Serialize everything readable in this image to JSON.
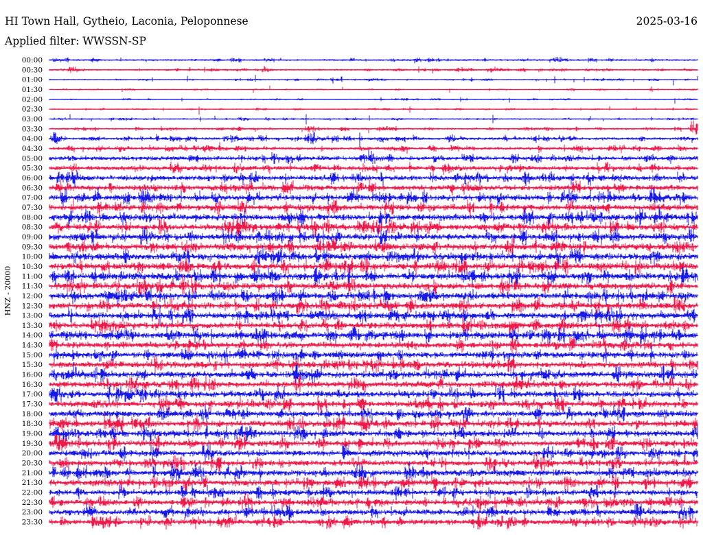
{
  "header": {
    "station": "HI Town Hall, Gytheio, Laconia, Peloponnese",
    "date": "2025-03-16",
    "filter": "Applied filter: WWSSN-SP"
  },
  "chart_data": {
    "type": "line",
    "subtype": "helicorder",
    "ylabel": "HNZ - 20000",
    "colors": [
      "#1a1ae6",
      "#ee1a4a"
    ],
    "trace_labels": [
      "00:00",
      "00:30",
      "01:00",
      "01:30",
      "02:00",
      "02:30",
      "03:00",
      "03:30",
      "04:00",
      "04:30",
      "05:00",
      "05:30",
      "06:00",
      "06:30",
      "07:00",
      "07:30",
      "08:00",
      "08:30",
      "09:00",
      "09:30",
      "10:00",
      "10:30",
      "11:00",
      "11:30",
      "12:00",
      "12:30",
      "13:00",
      "13:30",
      "14:00",
      "14:30",
      "15:00",
      "15:30",
      "16:00",
      "16:30",
      "17:00",
      "17:30",
      "18:00",
      "18:30",
      "19:00",
      "19:30",
      "20:00",
      "20:30",
      "21:00",
      "21:30",
      "22:00",
      "22:30",
      "23:00",
      "23:30"
    ],
    "noise_level": [
      0.9,
      0.8,
      0.5,
      0.4,
      0.4,
      0.45,
      0.6,
      0.9,
      1.4,
      1.6,
      2.2,
      2.4,
      2.7,
      2.9,
      3.1,
      3.2,
      3.4,
      3.4,
      3.5,
      3.6,
      3.7,
      3.6,
      3.6,
      3.5,
      3.5,
      3.5,
      3.4,
      3.4,
      3.4,
      3.3,
      3.4,
      3.5,
      3.4,
      3.4,
      3.4,
      3.3,
      3.3,
      3.4,
      3.3,
      3.3,
      3.3,
      3.2,
      3.3,
      3.2,
      3.1,
      3.1,
      3.0,
      2.9
    ],
    "events": [
      {
        "trace": 0,
        "minute": 23.5,
        "amp": 4
      },
      {
        "trace": 1,
        "minute": 1.0,
        "amp": 4
      },
      {
        "trace": 1,
        "minute": 19.0,
        "amp": 4
      },
      {
        "trace": 1,
        "minute": 20.5,
        "amp": 4
      },
      {
        "trace": 7,
        "minute": 12.0,
        "amp": 5
      },
      {
        "trace": 7,
        "minute": 29.8,
        "amp": 12
      },
      {
        "trace": 8,
        "minute": 0.2,
        "amp": 8
      },
      {
        "trace": 8,
        "minute": 12.0,
        "amp": 11
      },
      {
        "trace": 8,
        "minute": 18.5,
        "amp": 8
      },
      {
        "trace": 9,
        "minute": 7.2,
        "amp": 6
      },
      {
        "trace": 10,
        "minute": 15.0,
        "amp": 6
      },
      {
        "trace": 10,
        "minute": 14.5,
        "amp": 7
      },
      {
        "trace": 12,
        "minute": 14.3,
        "amp": 8
      },
      {
        "trace": 14,
        "minute": 4.3,
        "amp": 16
      },
      {
        "trace": 14,
        "minute": 14.0,
        "amp": 9
      },
      {
        "trace": 14,
        "minute": 27.9,
        "amp": 16
      },
      {
        "trace": 15,
        "minute": 27.9,
        "amp": 8
      },
      {
        "trace": 16,
        "minute": 10.8,
        "amp": 7
      },
      {
        "trace": 16,
        "minute": 23.3,
        "amp": 7
      },
      {
        "trace": 17,
        "minute": 12.7,
        "amp": 8
      },
      {
        "trace": 17,
        "minute": 17.8,
        "amp": 6
      },
      {
        "trace": 19,
        "minute": 19.5,
        "amp": 9
      },
      {
        "trace": 20,
        "minute": 10.6,
        "amp": 8
      },
      {
        "trace": 20,
        "minute": 15.7,
        "amp": 9
      },
      {
        "trace": 21,
        "minute": 6.2,
        "amp": 11
      },
      {
        "trace": 21,
        "minute": 12.9,
        "amp": 8
      },
      {
        "trace": 21,
        "minute": 25.4,
        "amp": 9
      },
      {
        "trace": 22,
        "minute": 10.3,
        "amp": 11
      },
      {
        "trace": 22,
        "minute": 12.3,
        "amp": 12
      },
      {
        "trace": 22,
        "minute": 13.2,
        "amp": 9
      },
      {
        "trace": 23,
        "minute": 6.2,
        "amp": 14
      },
      {
        "trace": 24,
        "minute": 7.5,
        "amp": 8
      },
      {
        "trace": 24,
        "minute": 13.1,
        "amp": 7
      },
      {
        "trace": 26,
        "minute": 16.4,
        "amp": 7
      },
      {
        "trace": 26,
        "minute": 24.7,
        "amp": 13
      },
      {
        "trace": 27,
        "minute": 2.1,
        "amp": 10
      },
      {
        "trace": 27,
        "minute": 2.8,
        "amp": 9
      },
      {
        "trace": 27,
        "minute": 13.3,
        "amp": 7
      },
      {
        "trace": 28,
        "minute": 5.7,
        "amp": 13
      },
      {
        "trace": 28,
        "minute": 9.5,
        "amp": 12
      },
      {
        "trace": 28,
        "minute": 9.9,
        "amp": 10
      },
      {
        "trace": 28,
        "minute": 10.9,
        "amp": 7
      },
      {
        "trace": 29,
        "minute": 9.8,
        "amp": 11
      },
      {
        "trace": 30,
        "minute": 11.2,
        "amp": 6
      },
      {
        "trace": 31,
        "minute": 5.0,
        "amp": 7
      },
      {
        "trace": 37,
        "minute": 14.5,
        "amp": 9
      },
      {
        "trace": 38,
        "minute": 30.0,
        "amp": 10
      },
      {
        "trace": 39,
        "minute": 0.3,
        "amp": 12
      },
      {
        "trace": 39,
        "minute": 20.7,
        "amp": 12
      },
      {
        "trace": 39,
        "minute": 27.5,
        "amp": 11
      },
      {
        "trace": 41,
        "minute": 23.0,
        "amp": 7
      },
      {
        "trace": 42,
        "minute": 29.4,
        "amp": 7
      },
      {
        "trace": 45,
        "minute": 2.4,
        "amp": 10
      },
      {
        "trace": 45,
        "minute": 12.4,
        "amp": 10
      },
      {
        "trace": 46,
        "minute": 9.1,
        "amp": 11
      },
      {
        "trace": 46,
        "minute": 10.3,
        "amp": 7
      }
    ]
  }
}
